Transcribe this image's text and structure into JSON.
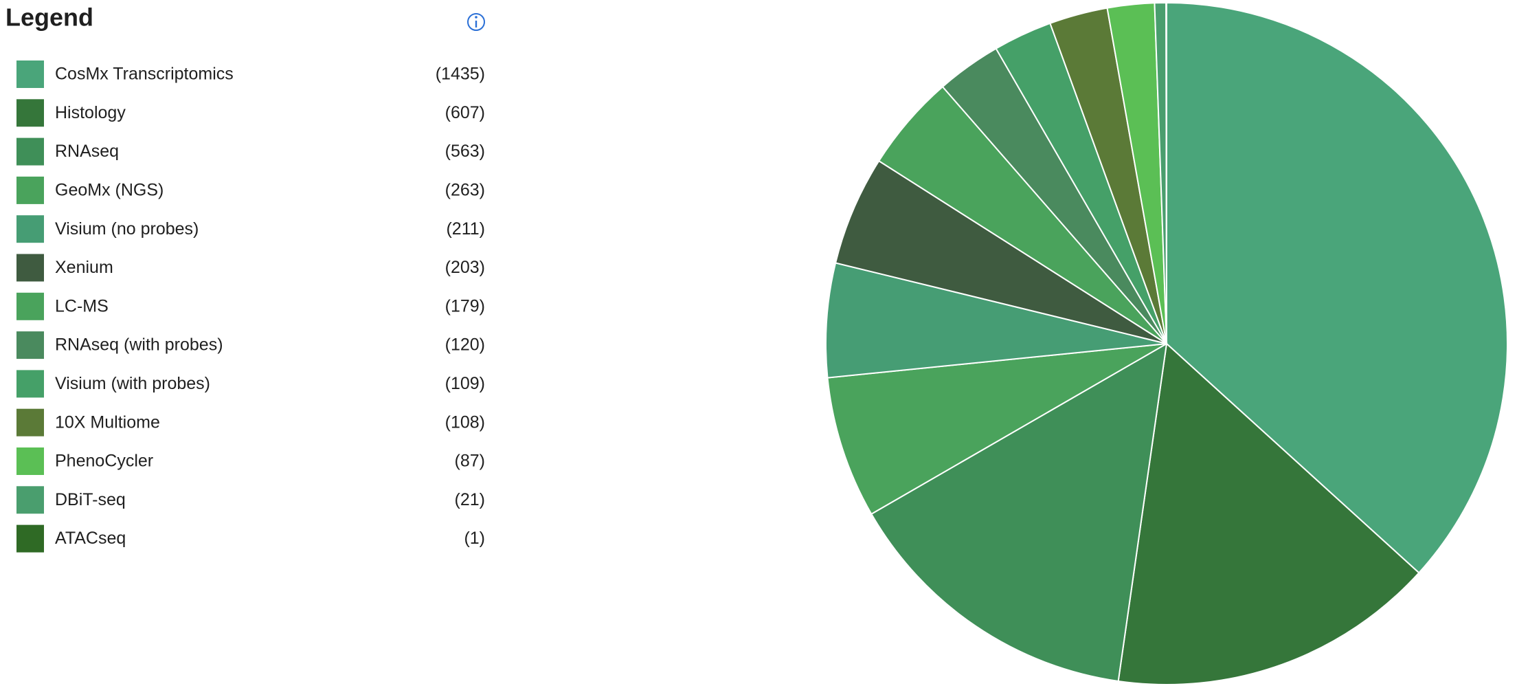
{
  "chart_data": {
    "type": "pie",
    "legend_title": "Legend",
    "categories": [
      "CosMx Transcriptomics",
      "Histology",
      "RNAseq",
      "GeoMx (NGS)",
      "Visium (no probes)",
      "Xenium",
      "LC-MS",
      "RNAseq (with probes)",
      "Visium (with probes)",
      "10X Multiome",
      "PhenoCycler",
      "DBiT-seq",
      "ATACseq"
    ],
    "values": [
      1435,
      607,
      563,
      263,
      211,
      203,
      179,
      120,
      109,
      108,
      87,
      21,
      1
    ],
    "value_labels": [
      "(1435)",
      "(607)",
      "(563)",
      "(263)",
      "(211)",
      "(203)",
      "(179)",
      "(120)",
      "(109)",
      "(108)",
      "(87)",
      "(21)",
      "(1)"
    ],
    "colors": [
      "#4aa57a",
      "#35763a",
      "#3f8f58",
      "#4aa35c",
      "#469d74",
      "#3f5b40",
      "#4aa35c",
      "#4a8a5e",
      "#45a068",
      "#5b7a37",
      "#5bbf55",
      "#4a9e6e",
      "#2f6a25"
    ]
  }
}
